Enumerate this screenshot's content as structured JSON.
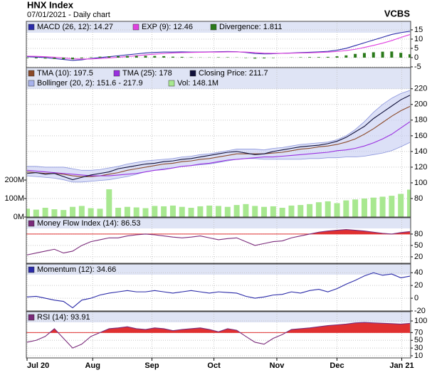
{
  "title": "HNX Index",
  "subtitle": "07/01/2021 - Daily chart",
  "source": "VCBS",
  "x_axis": {
    "xlim": [
      0,
      42
    ],
    "xticks": [
      {
        "value": 0,
        "label": "Jul 20"
      },
      {
        "value": 7.2,
        "label": "Aug"
      },
      {
        "value": 13.7,
        "label": "Sep"
      },
      {
        "value": 20.5,
        "label": "Oct"
      },
      {
        "value": 27.4,
        "label": "Nov"
      },
      {
        "value": 34,
        "label": "Dec"
      },
      {
        "value": 41.1,
        "label": "Jan 21"
      }
    ]
  },
  "chart_data": [
    {
      "type": "line",
      "ylim": [
        -5.4,
        19.6
      ],
      "yticks": [
        15,
        10,
        5,
        0,
        -5
      ],
      "grid": true,
      "series": [
        {
          "name": "MACD (26, 12): 14.27",
          "color": "#2a2aa8",
          "values": [
            0.5,
            0.3,
            0,
            -0.5,
            -1,
            -1.5,
            -1.2,
            -0.5,
            0,
            0.5,
            1,
            1.5,
            2,
            2.5,
            2.8,
            3,
            3,
            3.1,
            3,
            3,
            3.1,
            3.2,
            3.3,
            3.2,
            2.8,
            2.2,
            2,
            2.1,
            2.3,
            2.5,
            2.7,
            2.9,
            3.1,
            3.4,
            4,
            5,
            6.5,
            8,
            9.5,
            11,
            12.5,
            13.5,
            14.27
          ]
        },
        {
          "name": "EXP (9): 12.46",
          "color": "#e040e0",
          "values": [
            0.8,
            0.7,
            0.5,
            0.2,
            -0.2,
            -0.6,
            -0.8,
            -0.7,
            -0.5,
            -0.2,
            0.2,
            0.6,
            1,
            1.5,
            1.9,
            2.2,
            2.5,
            2.7,
            2.8,
            2.9,
            3,
            3,
            3.1,
            3.1,
            3,
            2.7,
            2.4,
            2.3,
            2.3,
            2.4,
            2.5,
            2.6,
            2.8,
            3,
            3.3,
            3.8,
            4.5,
            5.5,
            6.6,
            7.8,
            9.2,
            10.9,
            12.46
          ]
        },
        {
          "name": "Divergence: 1.811",
          "color": "#2a7a1a",
          "kind": "bar",
          "values": [
            -0.3,
            -0.4,
            -0.5,
            -0.7,
            -0.8,
            -0.9,
            -0.4,
            0.2,
            0.5,
            0.7,
            0.8,
            0.9,
            1,
            1,
            0.9,
            0.8,
            0.5,
            0.4,
            0.2,
            0.1,
            0.1,
            0.2,
            0.2,
            0.1,
            -0.2,
            -0.5,
            -0.4,
            -0.2,
            0,
            0.1,
            0.2,
            0.3,
            0.3,
            0.4,
            0.7,
            1.2,
            2,
            2.5,
            2.9,
            3.2,
            3.3,
            2.6,
            1.811
          ]
        }
      ]
    },
    {
      "type": "line",
      "ylim": [
        56.4,
        247
      ],
      "yticks": [
        220,
        200,
        180,
        160,
        140,
        120,
        100,
        80
      ],
      "y2lim": [
        0,
        808
      ],
      "y2ticks": [
        {
          "value": 200,
          "label": "200M"
        },
        {
          "value": 100,
          "label": "100M"
        },
        {
          "value": 0,
          "label": "0M"
        }
      ],
      "grid": true,
      "series": [
        {
          "name": "Bollinger (20, 2): 151.6 - 217.9",
          "color": "#c4cbf2",
          "kind": "band",
          "upper": [
            121,
            121,
            120,
            120,
            120,
            118,
            116,
            116,
            117,
            119,
            121,
            124,
            126,
            128,
            129,
            130,
            131,
            133,
            134,
            136,
            137,
            139,
            141,
            143,
            143,
            143,
            142,
            144,
            145,
            147,
            149,
            150,
            151,
            152,
            155,
            160,
            168,
            178,
            190,
            200,
            208,
            214,
            217.9
          ],
          "lower": [
            109,
            108,
            107,
            106,
            104,
            101,
            101,
            102,
            103,
            104,
            106,
            108,
            111,
            114,
            116,
            118,
            119,
            121,
            122,
            123,
            124,
            126,
            128,
            130,
            131,
            131,
            130,
            130,
            130,
            130,
            130,
            131,
            131,
            132,
            132,
            133,
            133,
            134,
            136,
            138,
            141,
            146,
            151.6
          ]
        },
        {
          "name": "Vol: 148.1M",
          "color": "#a8e890",
          "kind": "bar",
          "axis": "y2",
          "values": [
            45,
            40,
            50,
            42,
            38,
            55,
            60,
            48,
            45,
            150,
            50,
            55,
            52,
            48,
            60,
            58,
            62,
            55,
            50,
            58,
            62,
            60,
            55,
            65,
            70,
            60,
            55,
            58,
            50,
            62,
            65,
            70,
            80,
            85,
            75,
            90,
            95,
            100,
            105,
            110,
            115,
            125,
            148.1
          ]
        },
        {
          "name": "TMA (10): 197.5",
          "color": "#8b4a2a",
          "values": [
            114,
            113,
            112,
            112,
            111,
            109,
            108,
            108,
            109,
            111,
            113,
            116,
            118,
            120,
            122,
            124,
            125,
            127,
            128,
            130,
            131,
            133,
            135,
            137,
            137,
            137,
            137,
            138,
            139,
            141,
            143,
            144,
            146,
            147,
            149,
            152,
            156,
            162,
            169,
            177,
            185,
            192,
            197.5
          ]
        },
        {
          "name": "TMA (25): 178",
          "color": "#9a30e0",
          "values": [
            116,
            115,
            114,
            113,
            112,
            111,
            110,
            109,
            109,
            109,
            110,
            111,
            112,
            114,
            116,
            117,
            119,
            121,
            122,
            124,
            125,
            127,
            129,
            130,
            131,
            132,
            133,
            133,
            134,
            135,
            136,
            137,
            138,
            139,
            141,
            142,
            144,
            147,
            151,
            156,
            162,
            170,
            178
          ]
        },
        {
          "name": "Closing Price: 211.7",
          "color": "#10103a",
          "values": [
            112,
            113,
            111,
            112,
            108,
            104,
            107,
            110,
            112,
            114,
            118,
            120,
            122,
            124,
            125,
            127,
            128,
            130,
            131,
            133,
            135,
            137,
            139,
            140,
            138,
            136,
            137,
            140,
            142,
            144,
            146,
            147,
            148,
            150,
            153,
            158,
            165,
            172,
            182,
            190,
            198,
            206,
            211.7
          ]
        }
      ]
    },
    {
      "type": "line",
      "ylim": [
        3,
        123
      ],
      "yticks": [
        80,
        50,
        20
      ],
      "grid": true,
      "threshold": 80,
      "threshold_color": "#e03030",
      "series": [
        {
          "name": "Money Flow Index (14): 86.53",
          "color": "#7a2a7a",
          "values": [
            25,
            30,
            35,
            40,
            30,
            35,
            50,
            60,
            65,
            70,
            70,
            75,
            78,
            80,
            78,
            75,
            72,
            70,
            72,
            75,
            70,
            65,
            68,
            70,
            60,
            50,
            55,
            60,
            62,
            70,
            75,
            80,
            85,
            88,
            90,
            92,
            90,
            88,
            85,
            82,
            80,
            84,
            86.53
          ]
        }
      ]
    },
    {
      "type": "line",
      "ylim": [
        -20,
        53.7
      ],
      "yticks": [
        40,
        20,
        0,
        -20
      ],
      "grid": true,
      "series": [
        {
          "name": "Momentum (12): 34.66",
          "color": "#2a2aa8",
          "values": [
            2,
            3,
            0,
            -3,
            -5,
            -15,
            -3,
            0,
            5,
            8,
            10,
            12,
            10,
            10,
            12,
            10,
            8,
            10,
            12,
            10,
            8,
            10,
            9,
            8,
            3,
            0,
            2,
            5,
            6,
            10,
            8,
            12,
            14,
            10,
            15,
            22,
            28,
            35,
            40,
            36,
            38,
            32,
            34.66
          ]
        }
      ]
    },
    {
      "type": "line",
      "ylim": [
        4.5,
        124
      ],
      "yticks": [
        100,
        70,
        50,
        30,
        10
      ],
      "grid": true,
      "threshold": 70,
      "threshold_color": "#e03030",
      "series": [
        {
          "name": "RSI (14): 93.91",
          "color": "#7a2a7a",
          "values": [
            45,
            50,
            60,
            80,
            55,
            30,
            40,
            60,
            70,
            80,
            82,
            85,
            80,
            78,
            82,
            80,
            75,
            78,
            80,
            82,
            78,
            72,
            80,
            76,
            60,
            45,
            40,
            55,
            65,
            78,
            80,
            82,
            85,
            88,
            90,
            92,
            95,
            96,
            95,
            94,
            93,
            92,
            93.91
          ]
        }
      ]
    }
  ]
}
